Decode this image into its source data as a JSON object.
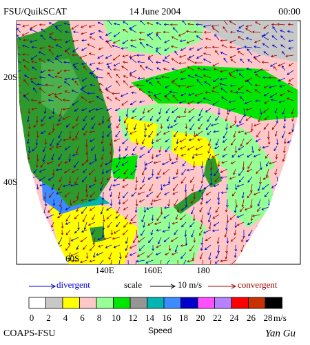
{
  "header": {
    "source": "FSU/QuikSCAT",
    "date": "14 June 2004",
    "time": "00:00"
  },
  "map": {
    "lat_labels": [
      "20S",
      "40S",
      "60S"
    ],
    "lon_labels": [
      "140E",
      "160E",
      "180"
    ]
  },
  "legend": {
    "divergent": "divergent",
    "scale": "scale",
    "scale_value": "10 m/s",
    "convergent": "convergent"
  },
  "colorbar": {
    "colors": [
      "#ffffff",
      "#c8c8c8",
      "#ffff00",
      "#ffc8c8",
      "#96ff96",
      "#00e600",
      "#969696",
      "#00b4b4",
      "#3c8cff",
      "#0000c8",
      "#ff50ff",
      "#b482ff",
      "#ff0000",
      "#c83200",
      "#000000"
    ],
    "ticks": [
      0,
      2,
      4,
      6,
      8,
      10,
      12,
      14,
      16,
      18,
      20,
      22,
      24,
      26,
      28
    ],
    "unit": "m/s",
    "label": "Speed"
  },
  "footer": {
    "left": "COAPS-FSU",
    "right": "Yan Gu"
  }
}
